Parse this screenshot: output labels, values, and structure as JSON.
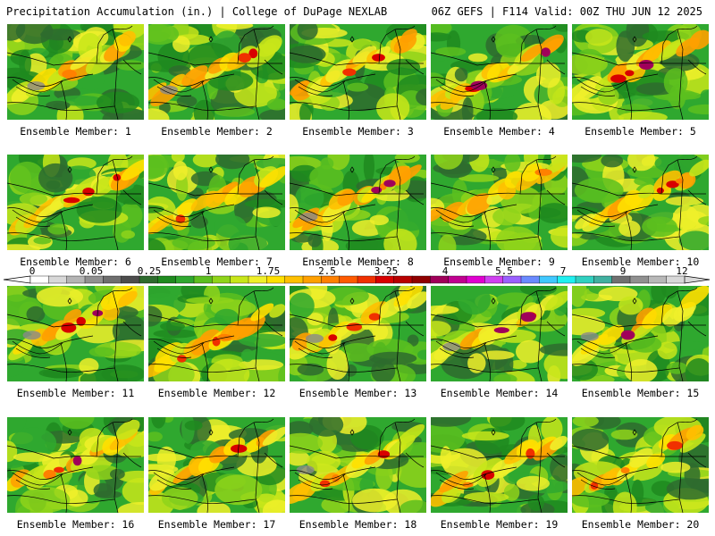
{
  "header": {
    "left": "Precipitation Accumulation (in.) | College of DuPage NEXLAB",
    "right": "06Z GEFS | F114 Valid: 00Z THU JUN 12 2025"
  },
  "members": [
    "Ensemble Member: 1",
    "Ensemble Member: 2",
    "Ensemble Member: 3",
    "Ensemble Member: 4",
    "Ensemble Member: 5",
    "Ensemble Member: 6",
    "Ensemble Member: 7",
    "Ensemble Member: 8",
    "Ensemble Member: 9",
    "Ensemble Member: 10",
    "Ensemble Member: 11",
    "Ensemble Member: 12",
    "Ensemble Member: 13",
    "Ensemble Member: 14",
    "Ensemble Member: 15",
    "Ensemble Member: 16",
    "Ensemble Member: 17",
    "Ensemble Member: 18",
    "Ensemble Member: 19",
    "Ensemble Member: 20"
  ],
  "colorbar": {
    "tick_labels": [
      "0",
      "0.05",
      "0.25",
      "1",
      "1.75",
      "2.5",
      "3.25",
      "4",
      "5.5",
      "7",
      "9",
      "12"
    ],
    "colors": [
      "#ffffff",
      "#d8d8d8",
      "#b4b4b4",
      "#909090",
      "#6e6e6e",
      "#4c4c4c",
      "#2e6b2e",
      "#1f8a1f",
      "#2fa82f",
      "#5cbf1f",
      "#8fd41a",
      "#c8e61a",
      "#f0f02a",
      "#ffe000",
      "#ffc000",
      "#ffa000",
      "#ff8000",
      "#ff5a00",
      "#f03000",
      "#d80000",
      "#b80000",
      "#900000",
      "#a0005a",
      "#c00090",
      "#e000d0",
      "#d040f0",
      "#9a60ff",
      "#6a8aff",
      "#40c8ff",
      "#20f0f0",
      "#30d0c0",
      "#40b0a0",
      "#707070",
      "#909090",
      "#b8b8b8",
      "#d8d8d8"
    ]
  }
}
